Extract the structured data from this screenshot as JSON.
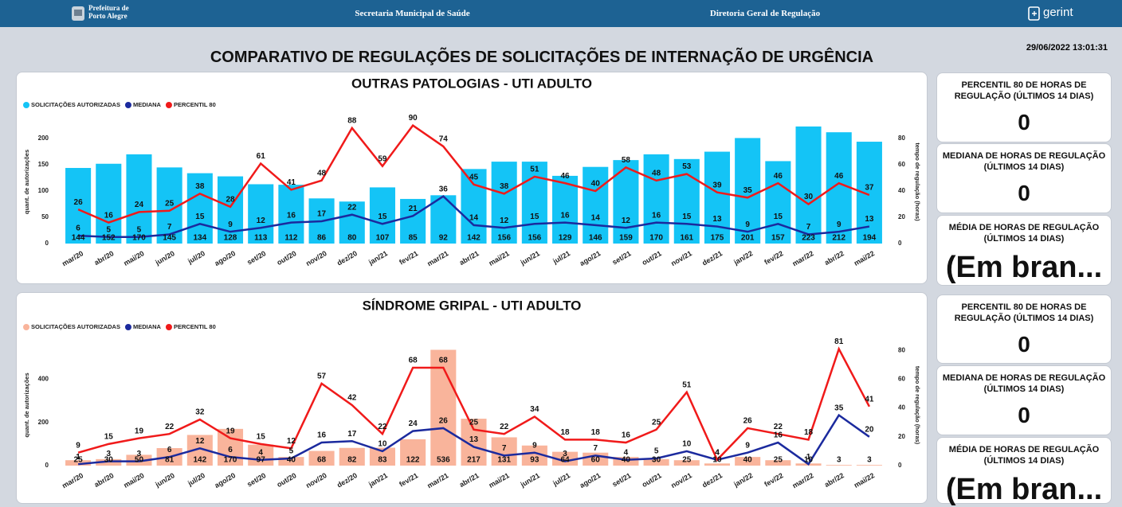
{
  "header": {
    "logo_text": [
      "Prefeitura de",
      "Porto Alegre"
    ],
    "center_left": "Secretaria Municipal de Saúde",
    "center_right": "Diretoria Geral de Regulação",
    "brand": "gerint"
  },
  "timestamp": "29/06/2022 13:01:31",
  "title": "COMPARATIVO DE REGULAÇÕES DE SOLICITAÇÕES DE INTERNAÇÃO DE URGÊNCIA",
  "chart_data": [
    {
      "type": "combo",
      "title": "OUTRAS PATOLOGIAS - UTI ADULTO",
      "legend": "top-left",
      "grid": false,
      "y_label": "quant. de autorizações",
      "y2_label": "tempo de regulação (horas)",
      "categories": [
        "mar/20",
        "abr/20",
        "mai/20",
        "jun/20",
        "jul/20",
        "ago/20",
        "set/20",
        "out/20",
        "nov/20",
        "dez/20",
        "jan/21",
        "fev/21",
        "mar/21",
        "abr/21",
        "mai/21",
        "jun/21",
        "jul/21",
        "ago/21",
        "set/21",
        "out/21",
        "nov/21",
        "dez/21",
        "jan/22",
        "fev/22",
        "mar/22",
        "abr/22",
        "mai/22"
      ],
      "series": [
        {
          "name": "SOLICITAÇÕES AUTORIZADAS",
          "type": "bar",
          "color": "#14c4f6",
          "values": [
            144,
            152,
            170,
            145,
            134,
            128,
            113,
            112,
            86,
            80,
            107,
            85,
            92,
            142,
            156,
            156,
            129,
            146,
            159,
            170,
            161,
            175,
            201,
            157,
            223,
            212,
            194
          ]
        },
        {
          "name": "MEDIANA",
          "type": "line",
          "axis": "y2",
          "color": "#1b2a9e",
          "values": [
            6,
            5,
            5,
            7,
            15,
            9,
            12,
            16,
            17,
            22,
            15,
            21,
            36,
            14,
            12,
            15,
            16,
            14,
            12,
            16,
            15,
            13,
            9,
            15,
            7,
            9,
            13
          ]
        },
        {
          "name": "PERCENTIL 80",
          "type": "line",
          "axis": "y2",
          "color": "#f01a1a",
          "values": [
            26,
            16,
            24,
            25,
            38,
            28,
            61,
            41,
            48,
            88,
            59,
            90,
            74,
            45,
            38,
            51,
            46,
            40,
            58,
            48,
            53,
            39,
            35,
            46,
            30,
            46,
            37
          ]
        }
      ],
      "ylim": [
        0,
        235
      ],
      "yticks": [
        0,
        50,
        100,
        150,
        200
      ],
      "y2lim": [
        0,
        94
      ],
      "y2ticks": [
        0,
        20,
        40,
        60,
        80
      ]
    },
    {
      "type": "combo",
      "title": "SÍNDROME GRIPAL - UTI ADULTO",
      "legend": "top-left",
      "grid": false,
      "y_label": "quant. de autorizações",
      "y2_label": "tempo de regulação (horas)",
      "categories": [
        "mar/20",
        "abr/20",
        "mai/20",
        "jun/20",
        "jul/20",
        "ago/20",
        "set/20",
        "out/20",
        "nov/20",
        "dez/20",
        "jan/21",
        "fev/21",
        "mar/21",
        "abr/21",
        "mai/21",
        "jun/21",
        "jul/21",
        "ago/21",
        "set/21",
        "out/21",
        "nov/21",
        "dez/21",
        "jan/22",
        "fev/22",
        "mar/22",
        "abr/22",
        "mai/22"
      ],
      "series": [
        {
          "name": "SOLICITAÇÕES AUTORIZADAS",
          "type": "bar",
          "color": "#f9b49b",
          "values": [
            25,
            30,
            50,
            81,
            142,
            170,
            97,
            40,
            68,
            82,
            83,
            122,
            536,
            217,
            131,
            93,
            64,
            60,
            40,
            30,
            25,
            10,
            40,
            25,
            10,
            3,
            3
          ]
        },
        {
          "name": "MEDIANA",
          "type": "line",
          "axis": "y2",
          "color": "#1b2a9e",
          "values": [
            1,
            3,
            3,
            6,
            12,
            6,
            4,
            5,
            16,
            17,
            10,
            24,
            26,
            13,
            7,
            9,
            3,
            7,
            4,
            5,
            10,
            4,
            9,
            16,
            1,
            35,
            20
          ]
        },
        {
          "name": "PERCENTIL 80",
          "type": "line",
          "axis": "y2",
          "color": "#f01a1a",
          "values": [
            9,
            15,
            19,
            22,
            32,
            19,
            15,
            12,
            57,
            42,
            22,
            68,
            68,
            25,
            22,
            34,
            18,
            18,
            16,
            25,
            51,
            4,
            26,
            22,
            18,
            81,
            41
          ]
        }
      ],
      "ylim": [
        0,
        560
      ],
      "yticks": [
        0,
        200,
        400
      ],
      "y2lim": [
        0,
        84
      ],
      "y2ticks": [
        0,
        20,
        40,
        60,
        80
      ]
    }
  ],
  "kpis": [
    [
      {
        "label": "PERCENTIL 80 DE HORAS DE REGULAÇÃO (ÚLTIMOS 14 DIAS)",
        "value": 0
      },
      {
        "label": "MEDIANA DE HORAS DE REGULAÇÃO (ÚLTIMOS 14 DIAS)",
        "value": 0
      },
      {
        "label": "MÉDIA DE HORAS DE REGULAÇÃO (ÚLTIMOS 14 DIAS)",
        "value": "(Em bran..."
      }
    ],
    [
      {
        "label": "PERCENTIL 80 DE HORAS DE REGULAÇÃO (ÚLTIMOS 14 DIAS)",
        "value": 0
      },
      {
        "label": "MEDIANA DE HORAS DE REGULAÇÃO (ÚLTIMOS 14 DIAS)",
        "value": 0
      },
      {
        "label": "MÉDIA DE HORAS DE REGULAÇÃO (ÚLTIMOS 14 DIAS)",
        "value": "(Em bran..."
      }
    ]
  ]
}
